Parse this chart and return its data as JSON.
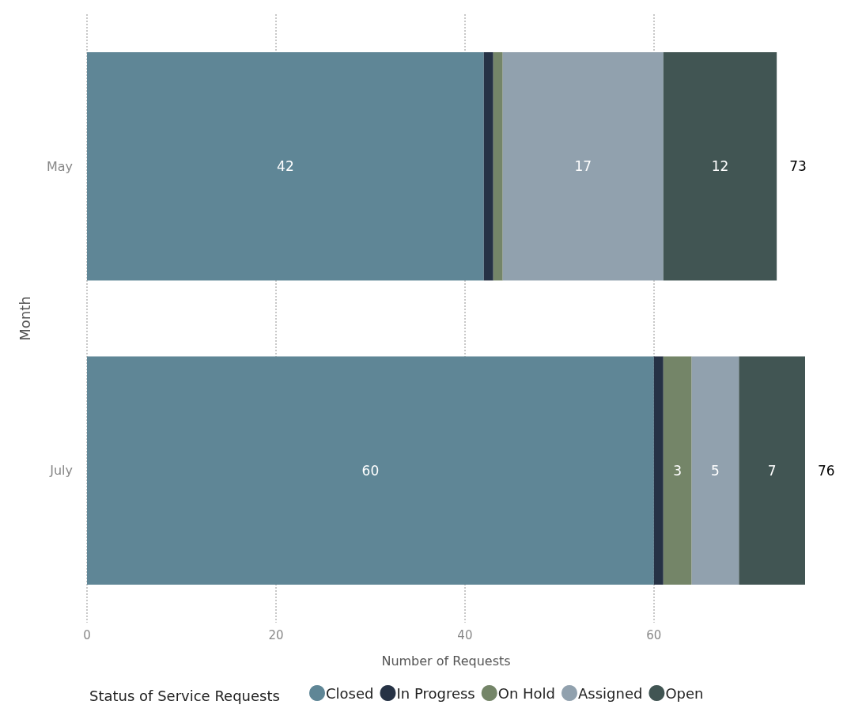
{
  "chart_data": {
    "type": "bar",
    "orientation": "horizontal",
    "stacked": true,
    "xlabel": "Number of Requests",
    "ylabel": "Month",
    "legend_title": "Status of Service Requests",
    "legend": "bottom",
    "grid": "x",
    "line_style": "dotted",
    "categories": [
      "May",
      "July"
    ],
    "series": [
      {
        "name": "Closed",
        "color": "#5f8696",
        "values": [
          42,
          60
        ],
        "value_labels": [
          "42",
          "60"
        ]
      },
      {
        "name": "In Progress",
        "color": "#263245",
        "values": [
          1,
          1
        ],
        "value_labels": [
          null,
          null
        ]
      },
      {
        "name": "On Hold",
        "color": "#748568",
        "values": [
          1,
          3
        ],
        "value_labels": [
          null,
          "3"
        ]
      },
      {
        "name": "Assigned",
        "color": "#91a1ae",
        "values": [
          17,
          5
        ],
        "value_labels": [
          "17",
          "5"
        ]
      },
      {
        "name": "Open",
        "color": "#415553",
        "values": [
          12,
          7
        ],
        "value_labels": [
          "12",
          "7"
        ]
      }
    ],
    "totals": [
      "73",
      "76"
    ],
    "xlim": [
      0,
      76
    ],
    "xticks": [
      0,
      20,
      40,
      60
    ]
  }
}
